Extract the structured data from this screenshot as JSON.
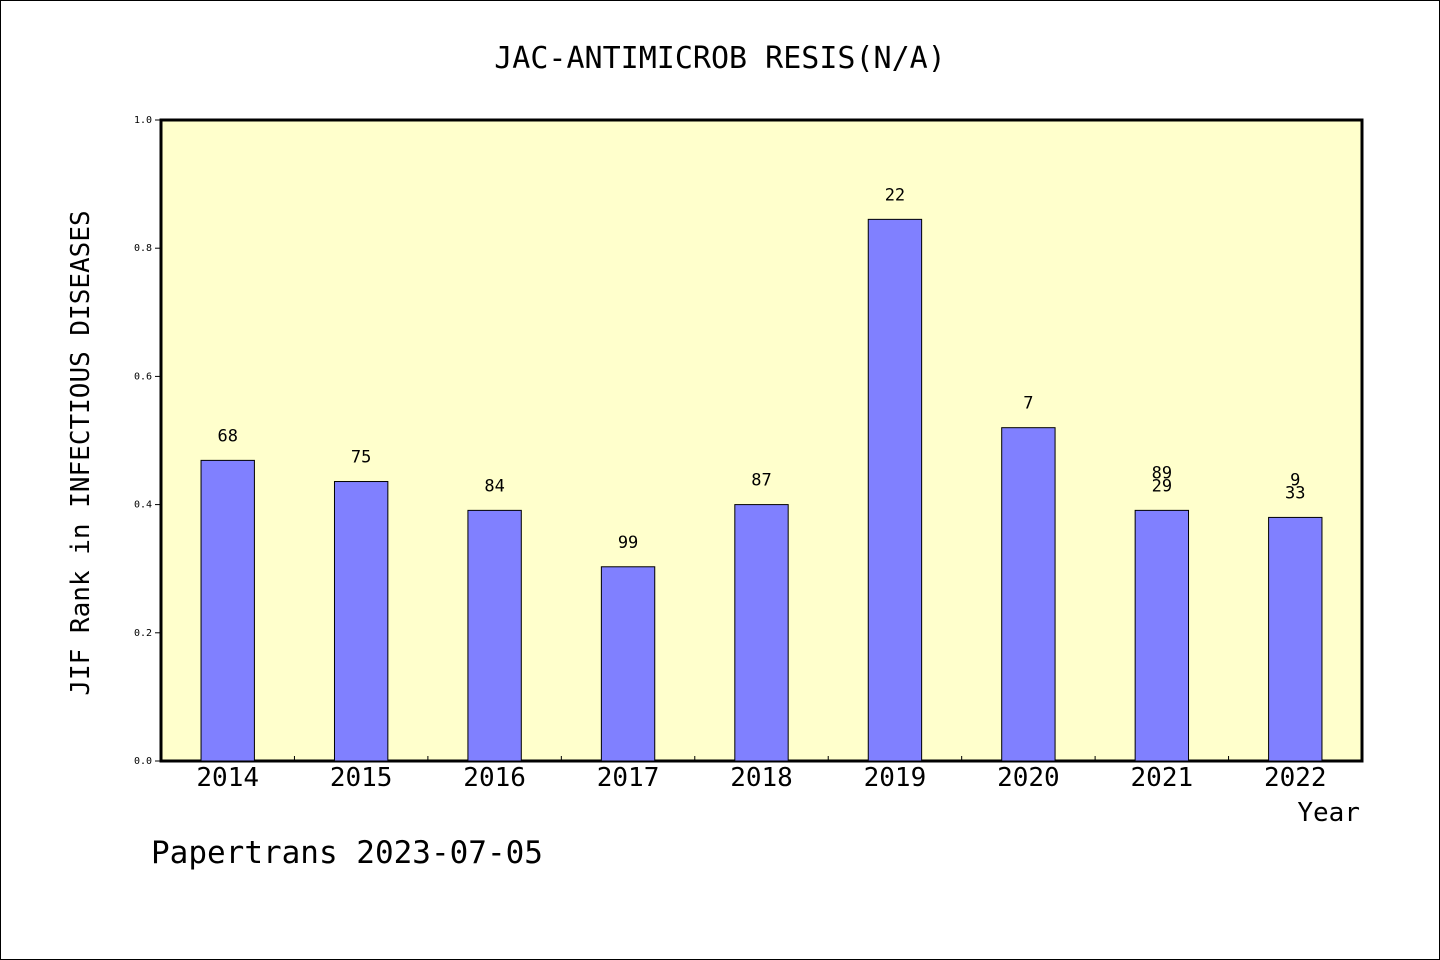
{
  "chart_data": {
    "type": "bar",
    "title": "JAC-ANTIMICROB RESIS(N/A)",
    "xlabel": "Year",
    "ylabel": "JIF Rank in INFECTIOUS DISEASES",
    "categories": [
      "2014",
      "2015",
      "2016",
      "2017",
      "2018",
      "2019",
      "2020",
      "2021",
      "2022"
    ],
    "values": [
      0.469,
      0.436,
      0.391,
      0.303,
      0.4,
      0.845,
      0.52,
      0.391,
      0.38
    ],
    "bar_labels": [
      [
        "68"
      ],
      [
        "75"
      ],
      [
        "84"
      ],
      [
        "99"
      ],
      [
        "87"
      ],
      [
        "22"
      ],
      [
        "7"
      ],
      [
        "89",
        "29"
      ],
      [
        "9",
        "33"
      ]
    ],
    "ylim": [
      0,
      1.0
    ],
    "yticks": [
      "0.0",
      "0.2",
      "0.4",
      "0.6",
      "0.8",
      "1.0"
    ],
    "grid": false,
    "colors": {
      "plot_background": "#ffffcc",
      "bar_fill": "#8080ff",
      "bar_stroke": "#000000"
    }
  },
  "footer": "Papertrans 2023-07-05"
}
